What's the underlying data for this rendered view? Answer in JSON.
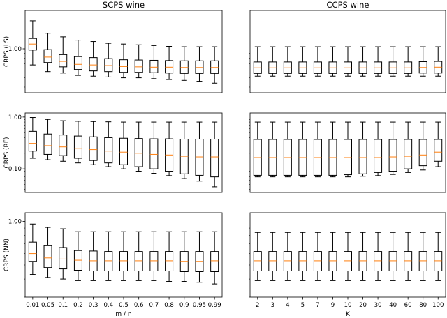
{
  "chart_data": [
    {
      "id": "scps-ls",
      "type": "boxplot",
      "title": "SCPS wine",
      "ylabel": "CRPS (LS)",
      "xlabel": "",
      "yscale": "log",
      "ylim": [
        0.35,
        2.5
      ],
      "yticks": [
        1.0
      ],
      "ytick_labels": [
        "1.00"
      ],
      "categories": [
        "0.01",
        "0.05",
        "0.1",
        "0.2",
        "0.3",
        "0.4",
        "0.5",
        "0.6",
        "0.7",
        "0.8",
        "0.9",
        "0.95",
        "0.99"
      ],
      "boxes": [
        {
          "wlo": 0.68,
          "q1": 0.97,
          "med": 1.12,
          "q3": 1.28,
          "whi": 1.95
        },
        {
          "wlo": 0.58,
          "q1": 0.72,
          "med": 0.82,
          "q3": 0.98,
          "whi": 1.45
        },
        {
          "wlo": 0.56,
          "q1": 0.65,
          "med": 0.74,
          "q3": 0.87,
          "whi": 1.33
        },
        {
          "wlo": 0.53,
          "q1": 0.61,
          "med": 0.69,
          "q3": 0.83,
          "whi": 1.23
        },
        {
          "wlo": 0.52,
          "q1": 0.59,
          "med": 0.68,
          "q3": 0.81,
          "whi": 1.19
        },
        {
          "wlo": 0.51,
          "q1": 0.58,
          "med": 0.67,
          "q3": 0.79,
          "whi": 1.14
        },
        {
          "wlo": 0.5,
          "q1": 0.57,
          "med": 0.655,
          "q3": 0.77,
          "whi": 1.12
        },
        {
          "wlo": 0.5,
          "q1": 0.57,
          "med": 0.65,
          "q3": 0.765,
          "whi": 1.1
        },
        {
          "wlo": 0.49,
          "q1": 0.565,
          "med": 0.645,
          "q3": 0.76,
          "whi": 1.08
        },
        {
          "wlo": 0.48,
          "q1": 0.56,
          "med": 0.645,
          "q3": 0.755,
          "whi": 1.06
        },
        {
          "wlo": 0.47,
          "q1": 0.555,
          "med": 0.64,
          "q3": 0.75,
          "whi": 1.05
        },
        {
          "wlo": 0.46,
          "q1": 0.555,
          "med": 0.64,
          "q3": 0.75,
          "whi": 1.05
        },
        {
          "wlo": 0.44,
          "q1": 0.555,
          "med": 0.64,
          "q3": 0.75,
          "whi": 1.05
        }
      ]
    },
    {
      "id": "ccps-ls",
      "type": "boxplot",
      "title": "CCPS wine",
      "ylabel": "",
      "xlabel": "",
      "yscale": "log",
      "ylim": [
        0.35,
        2.5
      ],
      "yticks": [],
      "ytick_labels": [],
      "categories": [
        "2",
        "3",
        "4",
        "5",
        "7",
        "9",
        "10",
        "20",
        "30",
        "40",
        "60",
        "80",
        "100"
      ],
      "boxes": [
        {
          "wlo": 0.52,
          "q1": 0.555,
          "med": 0.635,
          "q3": 0.73,
          "whi": 1.05
        },
        {
          "wlo": 0.52,
          "q1": 0.555,
          "med": 0.635,
          "q3": 0.73,
          "whi": 1.05
        },
        {
          "wlo": 0.52,
          "q1": 0.555,
          "med": 0.635,
          "q3": 0.73,
          "whi": 1.05
        },
        {
          "wlo": 0.52,
          "q1": 0.555,
          "med": 0.635,
          "q3": 0.73,
          "whi": 1.05
        },
        {
          "wlo": 0.52,
          "q1": 0.555,
          "med": 0.635,
          "q3": 0.73,
          "whi": 1.05
        },
        {
          "wlo": 0.52,
          "q1": 0.555,
          "med": 0.635,
          "q3": 0.73,
          "whi": 1.05
        },
        {
          "wlo": 0.52,
          "q1": 0.555,
          "med": 0.635,
          "q3": 0.73,
          "whi": 1.05
        },
        {
          "wlo": 0.52,
          "q1": 0.555,
          "med": 0.635,
          "q3": 0.73,
          "whi": 1.05
        },
        {
          "wlo": 0.52,
          "q1": 0.555,
          "med": 0.635,
          "q3": 0.73,
          "whi": 1.05
        },
        {
          "wlo": 0.52,
          "q1": 0.555,
          "med": 0.635,
          "q3": 0.73,
          "whi": 1.05
        },
        {
          "wlo": 0.52,
          "q1": 0.555,
          "med": 0.635,
          "q3": 0.73,
          "whi": 1.05
        },
        {
          "wlo": 0.52,
          "q1": 0.56,
          "med": 0.64,
          "q3": 0.735,
          "whi": 1.05
        },
        {
          "wlo": 0.52,
          "q1": 0.56,
          "med": 0.645,
          "q3": 0.74,
          "whi": 1.05
        }
      ]
    },
    {
      "id": "scps-rf",
      "type": "boxplot",
      "title": "",
      "ylabel": "CRPS (RF)",
      "xlabel": "",
      "yscale": "log",
      "ylim": [
        0.035,
        1.2
      ],
      "yticks": [
        0.1,
        1.0
      ],
      "ytick_labels": [
        "0.10",
        "1.00"
      ],
      "categories": [
        "0.01",
        "0.05",
        "0.1",
        "0.2",
        "0.3",
        "0.4",
        "0.5",
        "0.6",
        "0.7",
        "0.8",
        "0.9",
        "0.95",
        "0.99"
      ],
      "boxes": [
        {
          "wlo": 0.16,
          "q1": 0.22,
          "med": 0.31,
          "q3": 0.53,
          "whi": 0.98
        },
        {
          "wlo": 0.15,
          "q1": 0.19,
          "med": 0.28,
          "q3": 0.47,
          "whi": 0.9
        },
        {
          "wlo": 0.14,
          "q1": 0.18,
          "med": 0.265,
          "q3": 0.45,
          "whi": 0.85
        },
        {
          "wlo": 0.13,
          "q1": 0.16,
          "med": 0.245,
          "q3": 0.43,
          "whi": 0.83
        },
        {
          "wlo": 0.12,
          "q1": 0.145,
          "med": 0.235,
          "q3": 0.415,
          "whi": 0.82
        },
        {
          "wlo": 0.11,
          "q1": 0.13,
          "med": 0.22,
          "q3": 0.4,
          "whi": 0.81
        },
        {
          "wlo": 0.1,
          "q1": 0.12,
          "med": 0.21,
          "q3": 0.39,
          "whi": 0.8
        },
        {
          "wlo": 0.09,
          "q1": 0.11,
          "med": 0.2,
          "q3": 0.385,
          "whi": 0.8
        },
        {
          "wlo": 0.082,
          "q1": 0.1,
          "med": 0.19,
          "q3": 0.38,
          "whi": 0.8
        },
        {
          "wlo": 0.074,
          "q1": 0.09,
          "med": 0.185,
          "q3": 0.38,
          "whi": 0.8
        },
        {
          "wlo": 0.065,
          "q1": 0.08,
          "med": 0.175,
          "q3": 0.375,
          "whi": 0.8
        },
        {
          "wlo": 0.058,
          "q1": 0.075,
          "med": 0.17,
          "q3": 0.375,
          "whi": 0.8
        },
        {
          "wlo": 0.045,
          "q1": 0.07,
          "med": 0.17,
          "q3": 0.375,
          "whi": 0.8
        }
      ]
    },
    {
      "id": "ccps-rf",
      "type": "boxplot",
      "title": "",
      "ylabel": "",
      "xlabel": "",
      "yscale": "log",
      "ylim": [
        0.035,
        1.2
      ],
      "yticks": [],
      "ytick_labels": [],
      "categories": [
        "2",
        "3",
        "4",
        "5",
        "7",
        "9",
        "10",
        "20",
        "30",
        "40",
        "60",
        "80",
        "100"
      ],
      "boxes": [
        {
          "wlo": 0.07,
          "q1": 0.075,
          "med": 0.165,
          "q3": 0.37,
          "whi": 0.8
        },
        {
          "wlo": 0.07,
          "q1": 0.075,
          "med": 0.165,
          "q3": 0.37,
          "whi": 0.8
        },
        {
          "wlo": 0.07,
          "q1": 0.075,
          "med": 0.165,
          "q3": 0.37,
          "whi": 0.8
        },
        {
          "wlo": 0.07,
          "q1": 0.075,
          "med": 0.165,
          "q3": 0.37,
          "whi": 0.8
        },
        {
          "wlo": 0.07,
          "q1": 0.075,
          "med": 0.165,
          "q3": 0.37,
          "whi": 0.8
        },
        {
          "wlo": 0.07,
          "q1": 0.075,
          "med": 0.165,
          "q3": 0.37,
          "whi": 0.8
        },
        {
          "wlo": 0.07,
          "q1": 0.077,
          "med": 0.165,
          "q3": 0.37,
          "whi": 0.8
        },
        {
          "wlo": 0.072,
          "q1": 0.08,
          "med": 0.165,
          "q3": 0.37,
          "whi": 0.8
        },
        {
          "wlo": 0.074,
          "q1": 0.085,
          "med": 0.165,
          "q3": 0.37,
          "whi": 0.8
        },
        {
          "wlo": 0.078,
          "q1": 0.09,
          "med": 0.17,
          "q3": 0.37,
          "whi": 0.8
        },
        {
          "wlo": 0.085,
          "q1": 0.1,
          "med": 0.175,
          "q3": 0.37,
          "whi": 0.8
        },
        {
          "wlo": 0.095,
          "q1": 0.115,
          "med": 0.185,
          "q3": 0.37,
          "whi": 0.8
        },
        {
          "wlo": 0.11,
          "q1": 0.14,
          "med": 0.21,
          "q3": 0.37,
          "whi": 0.8
        }
      ]
    },
    {
      "id": "scps-nn",
      "type": "boxplot",
      "title": "",
      "ylabel": "CRPS (NN)",
      "xlabel": "m / n",
      "yscale": "log",
      "ylim": [
        0.3,
        1.15
      ],
      "yticks": [
        1.0
      ],
      "ytick_labels": [
        "1.00"
      ],
      "categories": [
        "0.01",
        "0.05",
        "0.1",
        "0.2",
        "0.3",
        "0.4",
        "0.5",
        "0.6",
        "0.7",
        "0.8",
        "0.9",
        "0.95",
        "0.99"
      ],
      "boxes": [
        {
          "wlo": 0.43,
          "q1": 0.53,
          "med": 0.6,
          "q3": 0.72,
          "whi": 0.96
        },
        {
          "wlo": 0.41,
          "q1": 0.48,
          "med": 0.56,
          "q3": 0.68,
          "whi": 0.91
        },
        {
          "wlo": 0.4,
          "q1": 0.47,
          "med": 0.55,
          "q3": 0.66,
          "whi": 0.89
        },
        {
          "wlo": 0.39,
          "q1": 0.46,
          "med": 0.54,
          "q3": 0.63,
          "whi": 0.85
        },
        {
          "wlo": 0.39,
          "q1": 0.455,
          "med": 0.535,
          "q3": 0.625,
          "whi": 0.85
        },
        {
          "wlo": 0.39,
          "q1": 0.455,
          "med": 0.535,
          "q3": 0.62,
          "whi": 0.85
        },
        {
          "wlo": 0.39,
          "q1": 0.455,
          "med": 0.535,
          "q3": 0.62,
          "whi": 0.85
        },
        {
          "wlo": 0.39,
          "q1": 0.455,
          "med": 0.535,
          "q3": 0.62,
          "whi": 0.85
        },
        {
          "wlo": 0.39,
          "q1": 0.455,
          "med": 0.535,
          "q3": 0.62,
          "whi": 0.85
        },
        {
          "wlo": 0.385,
          "q1": 0.455,
          "med": 0.535,
          "q3": 0.62,
          "whi": 0.85
        },
        {
          "wlo": 0.385,
          "q1": 0.45,
          "med": 0.53,
          "q3": 0.62,
          "whi": 0.85
        },
        {
          "wlo": 0.38,
          "q1": 0.45,
          "med": 0.53,
          "q3": 0.62,
          "whi": 0.85
        },
        {
          "wlo": 0.37,
          "q1": 0.45,
          "med": 0.535,
          "q3": 0.62,
          "whi": 0.85
        }
      ]
    },
    {
      "id": "ccps-nn",
      "type": "boxplot",
      "title": "",
      "ylabel": "",
      "xlabel": "K",
      "yscale": "log",
      "ylim": [
        0.3,
        1.15
      ],
      "yticks": [],
      "ytick_labels": [],
      "categories": [
        "2",
        "3",
        "4",
        "5",
        "7",
        "9",
        "10",
        "20",
        "30",
        "40",
        "60",
        "80",
        "100"
      ],
      "boxes": [
        {
          "wlo": 0.39,
          "q1": 0.455,
          "med": 0.535,
          "q3": 0.62,
          "whi": 0.84
        },
        {
          "wlo": 0.39,
          "q1": 0.455,
          "med": 0.535,
          "q3": 0.62,
          "whi": 0.84
        },
        {
          "wlo": 0.39,
          "q1": 0.455,
          "med": 0.535,
          "q3": 0.62,
          "whi": 0.84
        },
        {
          "wlo": 0.39,
          "q1": 0.455,
          "med": 0.535,
          "q3": 0.62,
          "whi": 0.84
        },
        {
          "wlo": 0.39,
          "q1": 0.455,
          "med": 0.535,
          "q3": 0.62,
          "whi": 0.84
        },
        {
          "wlo": 0.39,
          "q1": 0.455,
          "med": 0.535,
          "q3": 0.62,
          "whi": 0.84
        },
        {
          "wlo": 0.39,
          "q1": 0.455,
          "med": 0.535,
          "q3": 0.62,
          "whi": 0.84
        },
        {
          "wlo": 0.39,
          "q1": 0.455,
          "med": 0.535,
          "q3": 0.62,
          "whi": 0.84
        },
        {
          "wlo": 0.39,
          "q1": 0.455,
          "med": 0.535,
          "q3": 0.62,
          "whi": 0.84
        },
        {
          "wlo": 0.39,
          "q1": 0.455,
          "med": 0.535,
          "q3": 0.62,
          "whi": 0.84
        },
        {
          "wlo": 0.39,
          "q1": 0.455,
          "med": 0.535,
          "q3": 0.62,
          "whi": 0.84
        },
        {
          "wlo": 0.39,
          "q1": 0.455,
          "med": 0.535,
          "q3": 0.62,
          "whi": 0.84
        },
        {
          "wlo": 0.39,
          "q1": 0.455,
          "med": 0.535,
          "q3": 0.62,
          "whi": 0.84
        }
      ]
    }
  ],
  "colors": {
    "box": "#000000",
    "median": "#ff7f0e",
    "background": "#ffffff"
  }
}
